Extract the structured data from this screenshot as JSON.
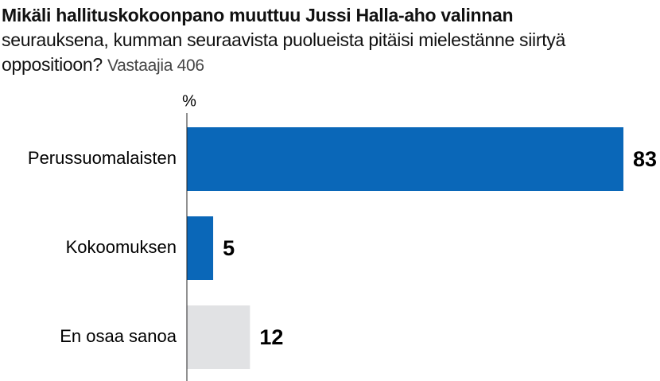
{
  "chart_data": {
    "type": "hbar",
    "title": "Mikäli hallituskokoonpano muuttuu Jussi Halla-aho valinnan",
    "subtitle": "seurauksena, kumman seuraavista puolueista pitäisi mielestänne siirtyä oppositioon?",
    "note": "Vastaajia 406",
    "axis_label": "%",
    "categories": [
      "Perussuomalaisten",
      "Kokoomuksen",
      "En osaa sanoa"
    ],
    "values": [
      83,
      5,
      12
    ],
    "colors": [
      "#0a67b8",
      "#0a67b8",
      "#e1e2e4"
    ]
  }
}
